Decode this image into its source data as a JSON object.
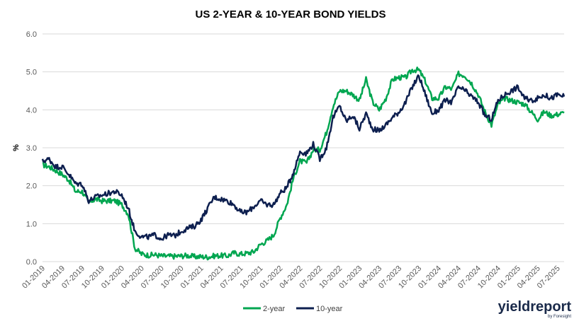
{
  "chart_data": {
    "type": "line",
    "title": "US 2-YEAR & 10-YEAR BOND YIELDS",
    "ylabel": "%",
    "xlabel": "",
    "ylim": [
      0,
      6
    ],
    "y_ticks": [
      "0.0",
      "1.0",
      "2.0",
      "3.0",
      "4.0",
      "5.0",
      "6.0"
    ],
    "x_tick_labels": [
      "01-2019",
      "04-2019",
      "07-2019",
      "10-2019",
      "01-2020",
      "04-2020",
      "07-2020",
      "10-2020",
      "01-2021",
      "04-2021",
      "07-2021",
      "10-2021",
      "01-2022",
      "04-2022",
      "07-2022",
      "10-2022",
      "01-2023",
      "04-2023",
      "07-2023",
      "10-2023",
      "01-2024",
      "04-2024",
      "07-2024",
      "10-2024",
      "01-2025",
      "04-2025",
      "07-2025"
    ],
    "grid": true,
    "legend_position": "bottom",
    "x": [
      "2019-01",
      "2019-02",
      "2019-03",
      "2019-04",
      "2019-05",
      "2019-06",
      "2019-07",
      "2019-08",
      "2019-09",
      "2019-10",
      "2019-11",
      "2019-12",
      "2020-01",
      "2020-02",
      "2020-03",
      "2020-04",
      "2020-05",
      "2020-06",
      "2020-07",
      "2020-08",
      "2020-09",
      "2020-10",
      "2020-11",
      "2020-12",
      "2021-01",
      "2021-02",
      "2021-03",
      "2021-04",
      "2021-05",
      "2021-06",
      "2021-07",
      "2021-08",
      "2021-09",
      "2021-10",
      "2021-11",
      "2021-12",
      "2022-01",
      "2022-02",
      "2022-03",
      "2022-04",
      "2022-05",
      "2022-06",
      "2022-07",
      "2022-08",
      "2022-09",
      "2022-10",
      "2022-11",
      "2022-12",
      "2023-01",
      "2023-02",
      "2023-03",
      "2023-04",
      "2023-05",
      "2023-06",
      "2023-07",
      "2023-08",
      "2023-09",
      "2023-10",
      "2023-11",
      "2023-12",
      "2024-01",
      "2024-02",
      "2024-03",
      "2024-04",
      "2024-05",
      "2024-06",
      "2024-07",
      "2024-08",
      "2024-09",
      "2024-10",
      "2024-11",
      "2024-12",
      "2025-01",
      "2025-02",
      "2025-03",
      "2025-04",
      "2025-05",
      "2025-06",
      "2025-07",
      "2025-08"
    ],
    "series": [
      {
        "name": "2-year",
        "color": "#00a650",
        "values": [
          2.55,
          2.5,
          2.4,
          2.3,
          2.15,
          1.85,
          1.85,
          1.55,
          1.65,
          1.6,
          1.6,
          1.6,
          1.5,
          1.25,
          0.35,
          0.2,
          0.17,
          0.18,
          0.15,
          0.14,
          0.14,
          0.15,
          0.16,
          0.13,
          0.13,
          0.12,
          0.15,
          0.16,
          0.15,
          0.23,
          0.2,
          0.22,
          0.26,
          0.45,
          0.55,
          0.7,
          1.15,
          1.5,
          2.2,
          2.65,
          2.6,
          2.95,
          2.95,
          3.4,
          4.1,
          4.5,
          4.5,
          4.4,
          4.25,
          4.8,
          4.2,
          4.0,
          4.3,
          4.8,
          4.85,
          4.85,
          5.05,
          5.05,
          4.75,
          4.3,
          4.3,
          4.6,
          4.55,
          4.95,
          4.9,
          4.7,
          4.4,
          3.95,
          3.6,
          4.15,
          4.3,
          4.25,
          4.2,
          4.15,
          3.95,
          3.75,
          3.95,
          3.85,
          3.88,
          3.92
        ]
      },
      {
        "name": "10-year",
        "color": "#0d1f4f",
        "values": [
          2.65,
          2.7,
          2.5,
          2.5,
          2.3,
          2.05,
          2.05,
          1.6,
          1.7,
          1.75,
          1.8,
          1.85,
          1.75,
          1.4,
          0.8,
          0.65,
          0.65,
          0.7,
          0.6,
          0.7,
          0.68,
          0.8,
          0.88,
          0.93,
          1.1,
          1.4,
          1.7,
          1.65,
          1.6,
          1.5,
          1.3,
          1.3,
          1.45,
          1.6,
          1.5,
          1.5,
          1.8,
          1.95,
          2.35,
          2.9,
          2.85,
          3.1,
          2.7,
          3.0,
          3.8,
          4.1,
          3.7,
          3.85,
          3.5,
          3.9,
          3.5,
          3.45,
          3.6,
          3.8,
          3.95,
          4.2,
          4.6,
          4.9,
          4.4,
          3.9,
          4.0,
          4.25,
          4.2,
          4.6,
          4.5,
          4.35,
          4.2,
          3.85,
          3.75,
          4.25,
          4.4,
          4.5,
          4.6,
          4.3,
          4.25,
          4.3,
          4.4,
          4.3,
          4.4,
          4.35
        ]
      }
    ]
  },
  "brand": {
    "name": "yieldreport",
    "byline": "by Foresight"
  }
}
